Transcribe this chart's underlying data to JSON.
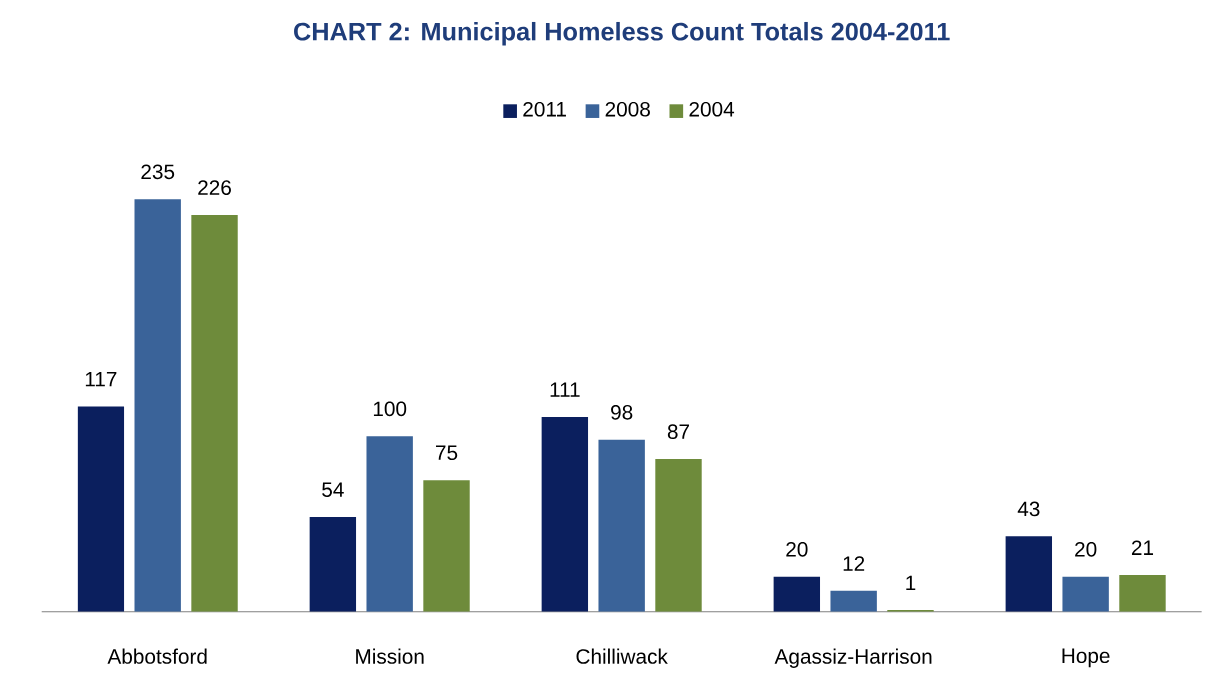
{
  "chart_data": {
    "type": "bar",
    "title": "CHART 2: Municipal Homeless Count Totals 2004-2011",
    "categories": [
      "Abbotsford",
      "Mission",
      "Chilliwack",
      "Agassiz-Harrison",
      "Hope"
    ],
    "series": [
      {
        "name": "2011",
        "color": "#0b1f5e",
        "values": [
          117,
          54,
          111,
          20,
          43
        ]
      },
      {
        "name": "2008",
        "color": "#3a6399",
        "values": [
          235,
          100,
          98,
          12,
          20
        ]
      },
      {
        "name": "2004",
        "color": "#6e8b3b",
        "values": [
          226,
          75,
          87,
          1,
          21
        ]
      }
    ],
    "data_labels": true,
    "legend": "top"
  }
}
